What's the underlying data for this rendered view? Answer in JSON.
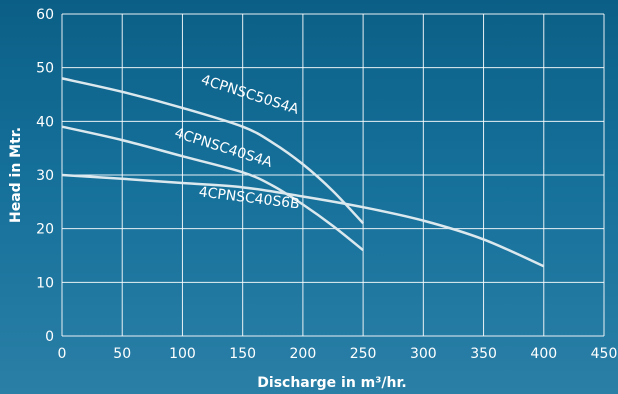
{
  "chart_data": {
    "type": "line",
    "xlabel": "Discharge in m³/hr.",
    "ylabel": "Head in Mtr.",
    "xlim": [
      0,
      450
    ],
    "ylim": [
      0,
      60
    ],
    "xticks": [
      0,
      50,
      100,
      150,
      200,
      250,
      300,
      350,
      400,
      450
    ],
    "yticks": [
      0,
      10,
      20,
      30,
      40,
      50,
      60
    ],
    "grid": true,
    "series": [
      {
        "name": "4CPNSC50S4A",
        "x": [
          0,
          50,
          100,
          150,
          175,
          200,
          225,
          250
        ],
        "y": [
          48,
          45.5,
          42.5,
          39,
          36,
          32,
          27,
          21
        ]
      },
      {
        "name": "4CPNSC40S4A",
        "x": [
          0,
          50,
          100,
          150,
          175,
          200,
          225,
          250
        ],
        "y": [
          39,
          36.5,
          33.5,
          30.5,
          28,
          24.5,
          20.5,
          16
        ]
      },
      {
        "name": "4CPNSC40S6B",
        "x": [
          0,
          50,
          100,
          150,
          200,
          250,
          300,
          350,
          400
        ],
        "y": [
          30,
          29.3,
          28.5,
          27.7,
          26,
          24,
          21.5,
          18,
          13
        ]
      }
    ]
  },
  "colors": {
    "curve": "#dbe8ee",
    "grid": "#ffffff",
    "text": "#ffffff"
  }
}
